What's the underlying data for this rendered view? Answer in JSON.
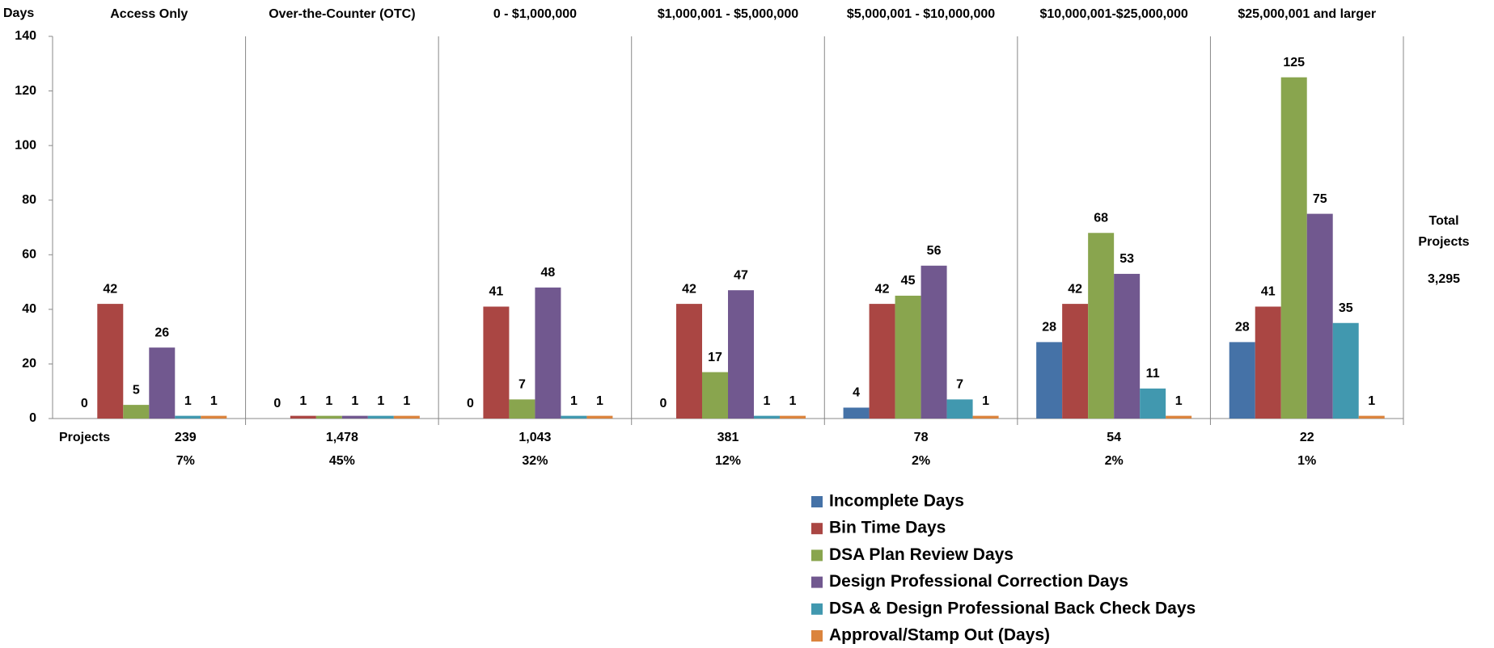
{
  "chart_data": {
    "type": "bar",
    "y_label": "Days",
    "categories": [
      "Access Only",
      "Over-the-Counter (OTC)",
      "0 - $1,000,000",
      "$1,000,001 - $5,000,000",
      "$5,000,001 - $10,000,000",
      "$10,000,001-$25,000,000",
      "$25,000,001 and larger"
    ],
    "series": [
      {
        "name": "Incomplete Days",
        "color": "#4572a7",
        "values": [
          0,
          0,
          0,
          0,
          4,
          28,
          28
        ]
      },
      {
        "name": "Bin Time Days",
        "color": "#aa4643",
        "values": [
          42,
          1,
          41,
          42,
          42,
          42,
          41
        ]
      },
      {
        "name": "DSA Plan Review Days",
        "color": "#89a54e",
        "values": [
          5,
          1,
          7,
          17,
          45,
          68,
          125
        ]
      },
      {
        "name": "Design Professional Correction Days",
        "color": "#71588f",
        "values": [
          26,
          1,
          48,
          47,
          56,
          53,
          75
        ]
      },
      {
        "name": "DSA & Design Professional Back Check Days",
        "color": "#4198af",
        "values": [
          1,
          1,
          1,
          1,
          7,
          11,
          35
        ]
      },
      {
        "name": "Approval/Stamp Out (Days)",
        "color": "#db843d",
        "values": [
          1,
          1,
          1,
          1,
          1,
          1,
          1
        ]
      }
    ],
    "ylim": [
      0,
      140
    ],
    "yticks": [
      0,
      20,
      40,
      60,
      80,
      100,
      120,
      140
    ],
    "projects_label": "Projects",
    "projects": [
      "239",
      "1,478",
      "1,043",
      "381",
      "78",
      "54",
      "22"
    ],
    "project_shares": [
      "7%",
      "45%",
      "32%",
      "12%",
      "2%",
      "2%",
      "1%"
    ],
    "total_label": [
      "Total",
      "Projects"
    ],
    "total": "3,295"
  }
}
